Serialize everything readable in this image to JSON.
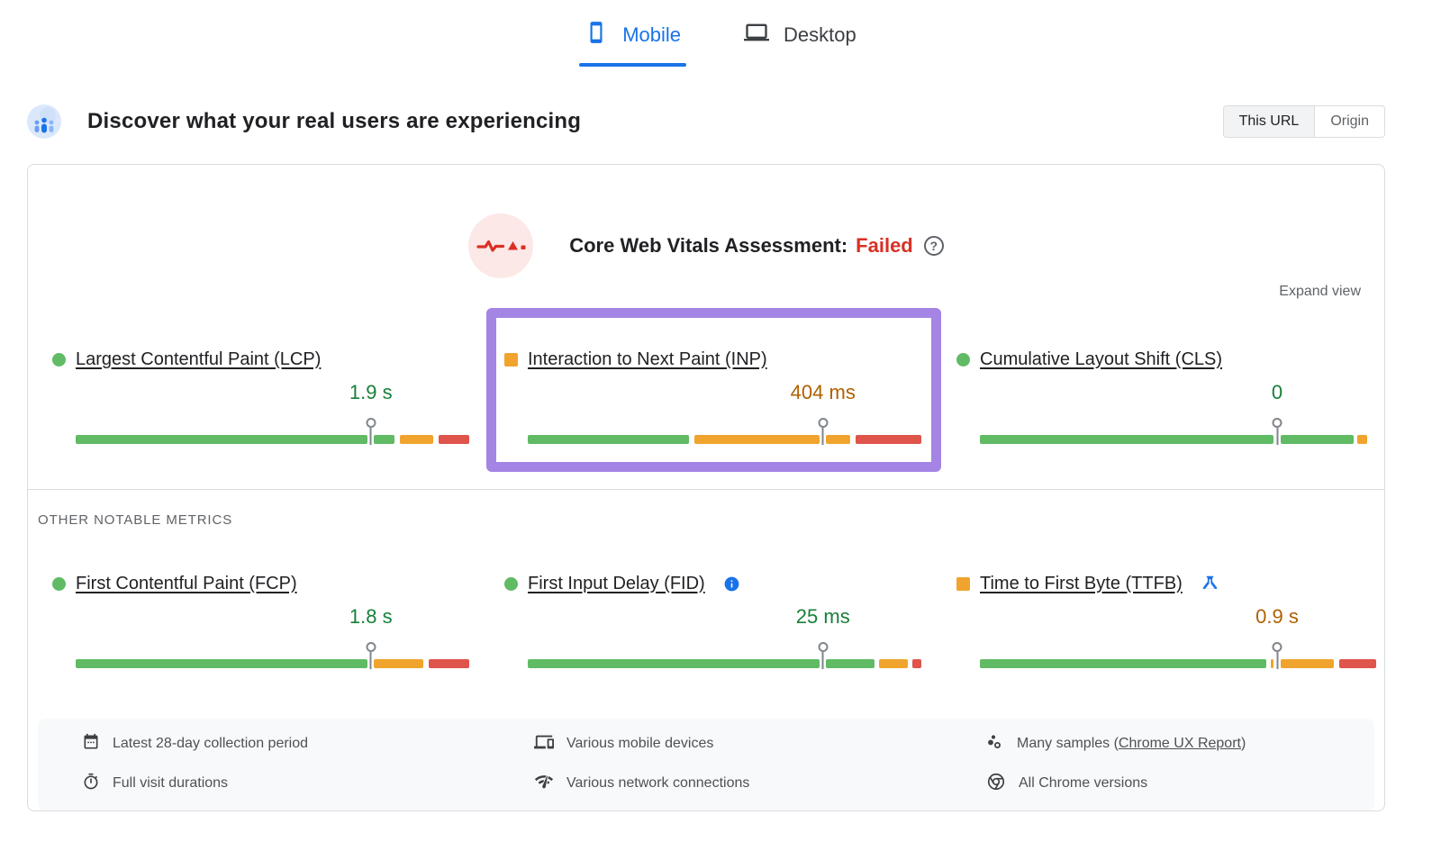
{
  "tabs": [
    {
      "label": "Mobile",
      "active": true
    },
    {
      "label": "Desktop",
      "active": false
    }
  ],
  "header": {
    "title": "Discover what your real users are experiencing",
    "scope": {
      "this_url": "This URL",
      "origin": "Origin",
      "selected": "This URL"
    }
  },
  "assessment": {
    "label": "Core Web Vitals Assessment:",
    "status": "Failed",
    "help_glyph": "?",
    "expand": "Expand view"
  },
  "sections": {
    "other_metrics": "OTHER NOTABLE METRICS"
  },
  "colors": {
    "green": "#60bb64",
    "orange": "#f0a42e",
    "red": "#df544b",
    "green_text": "#188038",
    "orange_text": "#b06000",
    "failed_red": "#d93025",
    "link_blue": "#1a73e8",
    "highlight_purple": "#a484e4"
  },
  "metrics": {
    "core": [
      {
        "name": "Largest Contentful Paint (LCP)",
        "value": "1.9 s",
        "value_color": "#188038",
        "rating": "good",
        "marker_pct": 75,
        "segments": [
          {
            "color": "green",
            "start": 0,
            "end": 74.2
          },
          {
            "color": "green",
            "start": 75.8,
            "end": 81
          },
          {
            "color": "orange",
            "start": 82.3,
            "end": 90.8
          },
          {
            "color": "red",
            "start": 92.2,
            "end": 100
          }
        ]
      },
      {
        "name": "Interaction to Next Paint (INP)",
        "value": "404 ms",
        "value_color": "#b06000",
        "rating": "needs-improvement",
        "highlighted": true,
        "marker_pct": 75,
        "segments": [
          {
            "color": "green",
            "start": 0,
            "end": 41
          },
          {
            "color": "orange",
            "start": 42.3,
            "end": 74.2
          },
          {
            "color": "orange",
            "start": 75.8,
            "end": 82
          },
          {
            "color": "red",
            "start": 83.4,
            "end": 100
          }
        ]
      },
      {
        "name": "Cumulative Layout Shift (CLS)",
        "value": "0",
        "value_color": "#188038",
        "rating": "good",
        "marker_pct": 75,
        "segments": [
          {
            "color": "green",
            "start": 0,
            "end": 74.2
          },
          {
            "color": "green",
            "start": 75.8,
            "end": 94.3
          },
          {
            "color": "orange",
            "start": 95.3,
            "end": 97.8
          }
        ]
      }
    ],
    "other": [
      {
        "name": "First Contentful Paint (FCP)",
        "value": "1.8 s",
        "value_color": "#188038",
        "rating": "good",
        "marker_pct": 75,
        "segments": [
          {
            "color": "green",
            "start": 0,
            "end": 74.2
          },
          {
            "color": "orange",
            "start": 75.8,
            "end": 88.3
          },
          {
            "color": "red",
            "start": 89.7,
            "end": 100
          }
        ]
      },
      {
        "name": "First Input Delay (FID)",
        "value": "25 ms",
        "value_color": "#188038",
        "rating": "good",
        "badge": "info",
        "marker_pct": 75,
        "segments": [
          {
            "color": "green",
            "start": 0,
            "end": 74.2
          },
          {
            "color": "green",
            "start": 75.8,
            "end": 88
          },
          {
            "color": "orange",
            "start": 89.2,
            "end": 96.6
          },
          {
            "color": "red",
            "start": 97.8,
            "end": 100
          }
        ]
      },
      {
        "name": "Time to First Byte (TTFB)",
        "value": "0.9 s",
        "value_color": "#b06000",
        "rating": "needs-improvement",
        "badge": "experimental-flask",
        "marker_pct": 75,
        "segments": [
          {
            "color": "green",
            "start": 0,
            "end": 72.2
          },
          {
            "color": "orange",
            "start": 73.4,
            "end": 74.2
          },
          {
            "color": "orange",
            "start": 75.8,
            "end": 89.3
          },
          {
            "color": "red",
            "start": 90.7,
            "end": 100
          }
        ]
      }
    ]
  },
  "footnotes": {
    "rows": [
      [
        {
          "icon": "calendar-icon",
          "text": "Latest 28-day collection period"
        },
        {
          "icon": "devices-icon",
          "text": "Various mobile devices"
        },
        {
          "icon": "samples-icon",
          "prefix": "Many samples (",
          "link": "Chrome UX Report",
          "suffix": ")"
        }
      ],
      [
        {
          "icon": "stopwatch-icon",
          "text": "Full visit durations"
        },
        {
          "icon": "network-icon",
          "text": "Various network connections"
        },
        {
          "icon": "chrome-icon",
          "text": "All Chrome versions"
        }
      ]
    ]
  }
}
